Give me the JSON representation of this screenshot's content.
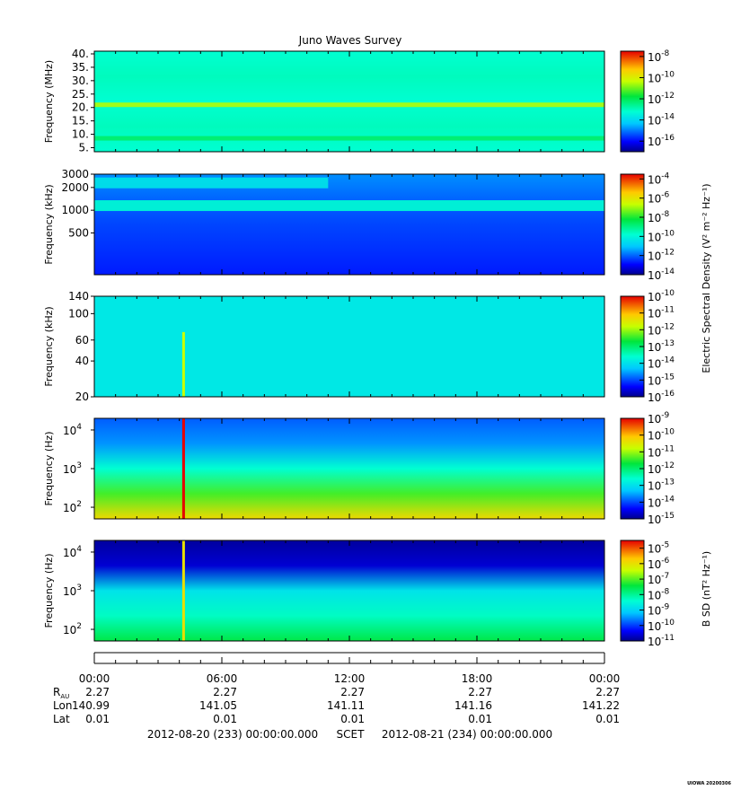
{
  "title": "Juno Waves Survey",
  "credit": "UIOWA 20200306",
  "colorbar_titles": {
    "electric": "Electric Spectral Density (V² m⁻² Hz⁻¹)",
    "magnetic": "B SD (nT² Hz⁻¹)"
  },
  "chart_data": [
    {
      "type": "heatmap",
      "panel": 1,
      "ylabel": "Frequency (MHz)",
      "yscale": "linear",
      "ylim": [
        3.5,
        41
      ],
      "yticks": [
        5,
        10,
        15,
        20,
        25,
        30,
        35,
        40
      ],
      "yticklabels": [
        "5.",
        "10.",
        "15.",
        "20.",
        "25.",
        "30.",
        "35.",
        "40."
      ],
      "colorbar": {
        "exponents": [
          -8,
          -10,
          -12,
          -14,
          -16
        ],
        "range": [
          -17,
          -7.5
        ]
      },
      "features": [
        {
          "freq": 21,
          "level": -10.5,
          "t_start": 0,
          "t_end": 24,
          "label": "band"
        },
        {
          "freq": 8.5,
          "level": -12.2,
          "t_start": 0,
          "t_end": 24,
          "label": "band"
        }
      ]
    },
    {
      "type": "heatmap",
      "panel": 2,
      "ylabel": "Frequency (kHz)",
      "yscale": "log",
      "ylim": [
        140,
        3000
      ],
      "yticks": [
        500,
        1000,
        2000,
        3000
      ],
      "yticklabels": [
        "500",
        "1000",
        "2000",
        "3000"
      ],
      "colorbar": {
        "exponents": [
          -4,
          -6,
          -8,
          -10,
          -12,
          -14
        ],
        "range": [
          -14,
          -3.5
        ]
      },
      "features": [
        {
          "freq": 1150,
          "level": -9.8,
          "t_start": 0,
          "t_end": 24
        },
        {
          "freq": 2300,
          "level": -10.4,
          "t_start": 0,
          "t_end": 11
        }
      ]
    },
    {
      "type": "heatmap",
      "panel": 3,
      "ylabel": "Frequency (kHz)",
      "yscale": "log",
      "ylim": [
        20,
        140
      ],
      "yticks": [
        20,
        40,
        60,
        100,
        140
      ],
      "yticklabels": [
        "20",
        "40",
        "60",
        "100",
        "140"
      ],
      "colorbar": {
        "exponents": [
          -10,
          -11,
          -12,
          -13,
          -14,
          -15,
          -16
        ],
        "range": [
          -16,
          -10
        ]
      },
      "features": [
        {
          "time": 4.2,
          "level": -11.8,
          "freq_max": 70
        }
      ]
    },
    {
      "type": "heatmap",
      "panel": 4,
      "ylabel": "Frequency (Hz)",
      "yscale": "log",
      "ylim": [
        50,
        20000
      ],
      "ytick_exponents": [
        2,
        3,
        4
      ],
      "colorbar": {
        "exponents": [
          -9,
          -10,
          -11,
          -12,
          -13,
          -14,
          -15
        ],
        "range": [
          -15,
          -9
        ]
      },
      "features": [
        {
          "time": 4.2,
          "level": -9.0,
          "freq_max": 20000
        }
      ]
    },
    {
      "type": "heatmap",
      "panel": 5,
      "ylabel": "Frequency (Hz)",
      "yscale": "log",
      "ylim": [
        50,
        20000
      ],
      "ytick_exponents": [
        2,
        3,
        4
      ],
      "colorbar": {
        "exponents": [
          -5,
          -6,
          -7,
          -8,
          -9,
          -10,
          -11
        ],
        "range": [
          -11,
          -4.5
        ]
      },
      "features": [
        {
          "time": 4.2,
          "level": -6.0,
          "freq_max": 20000
        }
      ]
    }
  ],
  "ephemeris": {
    "times": [
      "00:00",
      "06:00",
      "12:00",
      "18:00",
      "00:00"
    ],
    "rows": [
      {
        "label": "R",
        "label_sub": "AU",
        "values": [
          "2.27",
          "2.27",
          "2.27",
          "2.27",
          "2.27"
        ]
      },
      {
        "label": "Lon",
        "label_sub": "",
        "values": [
          "140.99",
          "141.05",
          "141.11",
          "141.16",
          "141.22"
        ]
      },
      {
        "label": "Lat",
        "label_sub": "",
        "values": [
          "0.01",
          "0.01",
          "0.01",
          "0.01",
          "0.01"
        ]
      }
    ]
  },
  "time_range": {
    "start": "2012-08-20 (233) 00:00:00.000",
    "scet": "SCET",
    "end": "2012-08-21 (234) 00:00:00.000"
  }
}
